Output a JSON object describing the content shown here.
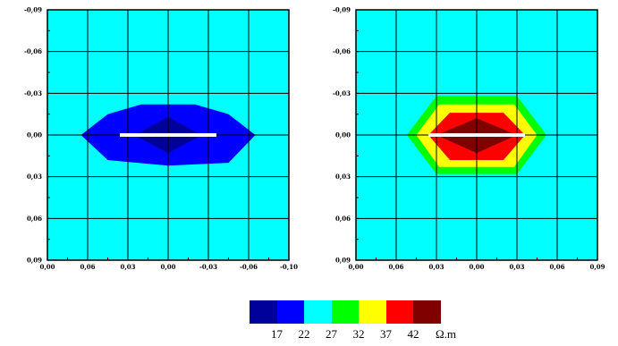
{
  "chart_data": [
    {
      "type": "heatmap",
      "panel": "left",
      "background_color": "#00ffff",
      "x_ticks": [
        "0,00",
        "0,06",
        "0,03",
        "0,00",
        "-0,03",
        "-0,06",
        "-0,10"
      ],
      "y_ticks": [
        "-0,09",
        "-0,06",
        "-0,03",
        "0,00",
        "0,03",
        "0,06",
        "0,09"
      ],
      "xlim": [
        -0.09,
        0.09
      ],
      "ylim": [
        -0.09,
        0.09
      ],
      "grid": true,
      "contours": [
        {
          "color": "#0000ff",
          "points": [
            [
              -0.065,
              0.0
            ],
            [
              -0.045,
              -0.015
            ],
            [
              -0.02,
              -0.022
            ],
            [
              0.02,
              -0.022
            ],
            [
              0.045,
              -0.015
            ],
            [
              0.065,
              0.0
            ],
            [
              0.045,
              0.02
            ],
            [
              0.0,
              0.022
            ],
            [
              -0.045,
              0.018
            ]
          ]
        },
        {
          "color": "#00009a",
          "points": [
            [
              -0.025,
              0.0
            ],
            [
              0.0,
              -0.013
            ],
            [
              0.025,
              0.0
            ],
            [
              0.0,
              0.013
            ]
          ]
        }
      ],
      "white_bar": {
        "x": [
          -0.036,
          0.036
        ],
        "y": 0.0
      }
    },
    {
      "type": "heatmap",
      "panel": "right",
      "background_color": "#00ffff",
      "x_ticks": [
        "0,00",
        "0,06",
        "0,03",
        "0,00",
        "0,03",
        "0,06",
        "0,09"
      ],
      "y_ticks": [
        "-0,09",
        "-0,06",
        "-0,03",
        "0,00",
        "0,03",
        "0,06",
        "0,09"
      ],
      "xlim": [
        -0.09,
        0.09
      ],
      "ylim": [
        -0.09,
        0.09
      ],
      "grid": true,
      "contours": [
        {
          "color": "#00ff00",
          "points": [
            [
              -0.052,
              0.0
            ],
            [
              -0.03,
              -0.028
            ],
            [
              0.03,
              -0.028
            ],
            [
              0.052,
              0.0
            ],
            [
              0.03,
              0.028
            ],
            [
              -0.03,
              0.028
            ]
          ]
        },
        {
          "color": "#ffff00",
          "points": [
            [
              -0.045,
              0.0
            ],
            [
              -0.028,
              -0.022
            ],
            [
              0.028,
              -0.022
            ],
            [
              0.045,
              0.0
            ],
            [
              0.028,
              0.023
            ],
            [
              -0.028,
              0.023
            ]
          ]
        },
        {
          "color": "#ff0000",
          "points": [
            [
              -0.036,
              0.0
            ],
            [
              -0.02,
              -0.016
            ],
            [
              0.02,
              -0.016
            ],
            [
              0.036,
              0.0
            ],
            [
              0.02,
              0.018
            ],
            [
              -0.02,
              0.018
            ]
          ]
        },
        {
          "color": "#800000",
          "points": [
            [
              -0.03,
              0.0
            ],
            [
              0.0,
              -0.012
            ],
            [
              0.03,
              0.0
            ],
            [
              0.0,
              0.013
            ]
          ]
        }
      ],
      "white_bar": {
        "x": [
          -0.036,
          0.036
        ],
        "y": 0.0
      }
    }
  ],
  "color_scale": {
    "colors": [
      "#00009a",
      "#0000ff",
      "#00ffff",
      "#00ff00",
      "#ffff00",
      "#ff0000",
      "#800000"
    ],
    "labels": [
      "17",
      "22",
      "27",
      "32",
      "37",
      "42"
    ],
    "unit": "Ω.m"
  }
}
